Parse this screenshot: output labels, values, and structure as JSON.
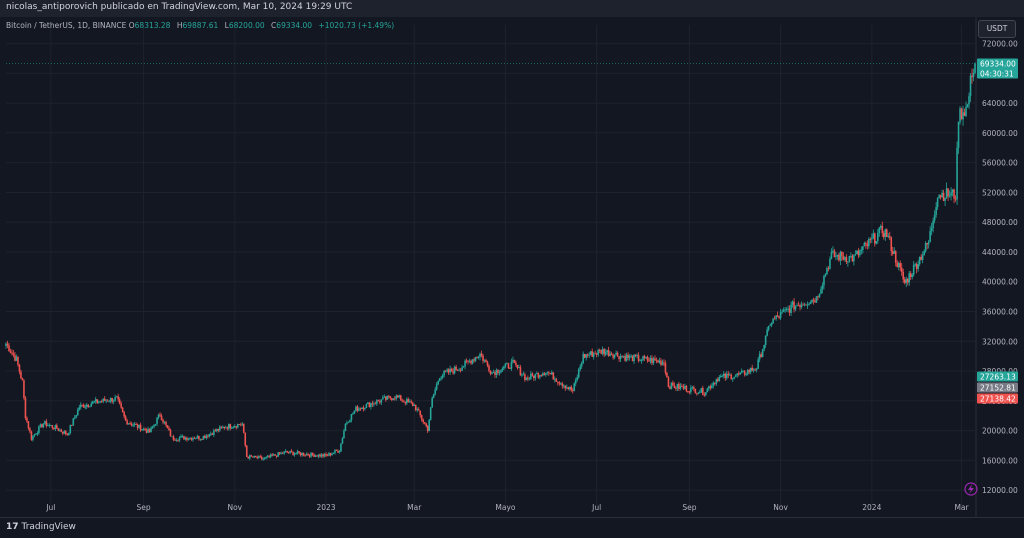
{
  "header": {
    "published_by": "nicolas_antiporovich publicado en TradingView.com, Mar 10, 2024 19:29 UTC"
  },
  "symbol": {
    "name": "Bitcoin / TetherUS, 1D, BINANCE",
    "open_label": "O",
    "open": "68313.28",
    "high_label": "H",
    "high": "69887.61",
    "low_label": "L",
    "low": "68200.00",
    "close_label": "C",
    "close": "69334.00",
    "change": "+1020.73 (+1.49%)"
  },
  "currency_button": "USDT",
  "footer": {
    "brand": "TradingView",
    "logo_glyph": "17"
  },
  "colors": {
    "up": "#26a69a",
    "down": "#ef5350",
    "background": "#131722",
    "grid": "#1e222d",
    "text": "#b2b5be"
  },
  "price_tags": [
    {
      "label": "69334.00",
      "sub": "04:30:31",
      "value": 69334,
      "color": "#26a69a"
    },
    {
      "label": "27263.13",
      "value": 27263.13,
      "color": "#26a69a"
    },
    {
      "label": "27152.81",
      "value": 27152.81,
      "color": "#787b86"
    },
    {
      "label": "27138.42",
      "value": 27138.42,
      "color": "#ef5350"
    }
  ],
  "chart_data": {
    "type": "candlestick",
    "y_ticks": [
      "12000.00",
      "16000.00",
      "20000.00",
      "24000.00",
      "28000.00",
      "32000.00",
      "36000.00",
      "40000.00",
      "44000.00",
      "48000.00",
      "52000.00",
      "56000.00",
      "60000.00",
      "64000.00",
      "68000.00",
      "72000.00"
    ],
    "y_tick_values": [
      12000,
      16000,
      20000,
      24000,
      28000,
      32000,
      36000,
      40000,
      44000,
      48000,
      52000,
      56000,
      60000,
      64000,
      68000,
      72000
    ],
    "ylim": [
      10000,
      74500
    ],
    "x_ticks": [
      "Jul",
      "Sep",
      "Nov",
      "2023",
      "Mar",
      "Mayo",
      "Jul",
      "Sep",
      "Nov",
      "2024",
      "Mar"
    ],
    "x_tick_dates": [
      "2022-07-01",
      "2022-09-01",
      "2022-11-01",
      "2023-01-01",
      "2023-03-01",
      "2023-05-01",
      "2023-07-01",
      "2023-09-01",
      "2023-11-01",
      "2024-01-01",
      "2024-03-01"
    ],
    "xlim": [
      "2022-06-01",
      "2024-03-10"
    ],
    "series_anchors": [
      [
        "2022-06-01",
        31700
      ],
      [
        "2022-06-08",
        29500
      ],
      [
        "2022-06-12",
        26500
      ],
      [
        "2022-06-14",
        22000
      ],
      [
        "2022-06-18",
        19000
      ],
      [
        "2022-06-26",
        21000
      ],
      [
        "2022-07-05",
        20300
      ],
      [
        "2022-07-12",
        19500
      ],
      [
        "2022-07-20",
        23200
      ],
      [
        "2022-07-30",
        23800
      ],
      [
        "2022-08-14",
        24300
      ],
      [
        "2022-08-20",
        21300
      ],
      [
        "2022-09-05",
        19800
      ],
      [
        "2022-09-12",
        22200
      ],
      [
        "2022-09-20",
        19000
      ],
      [
        "2022-10-10",
        19100
      ],
      [
        "2022-10-25",
        20500
      ],
      [
        "2022-11-06",
        20900
      ],
      [
        "2022-11-09",
        16500
      ],
      [
        "2022-11-20",
        16200
      ],
      [
        "2022-12-05",
        17100
      ],
      [
        "2022-12-20",
        16800
      ],
      [
        "2023-01-01",
        16600
      ],
      [
        "2023-01-10",
        17400
      ],
      [
        "2023-01-14",
        20900
      ],
      [
        "2023-01-21",
        22900
      ],
      [
        "2023-02-01",
        23700
      ],
      [
        "2023-02-16",
        24600
      ],
      [
        "2023-03-01",
        23400
      ],
      [
        "2023-03-10",
        20200
      ],
      [
        "2023-03-13",
        24200
      ],
      [
        "2023-03-18",
        27400
      ],
      [
        "2023-04-01",
        28500
      ],
      [
        "2023-04-14",
        30300
      ],
      [
        "2023-04-22",
        27800
      ],
      [
        "2023-05-06",
        29000
      ],
      [
        "2023-05-15",
        27000
      ],
      [
        "2023-05-28",
        28000
      ],
      [
        "2023-06-15",
        25300
      ],
      [
        "2023-06-22",
        30000
      ],
      [
        "2023-07-05",
        30700
      ],
      [
        "2023-07-20",
        29900
      ],
      [
        "2023-08-15",
        29200
      ],
      [
        "2023-08-18",
        26100
      ],
      [
        "2023-09-11",
        25200
      ],
      [
        "2023-09-20",
        27100
      ],
      [
        "2023-10-05",
        27500
      ],
      [
        "2023-10-16",
        28500
      ],
      [
        "2023-10-23",
        33000
      ],
      [
        "2023-10-25",
        34500
      ],
      [
        "2023-11-09",
        36700
      ],
      [
        "2023-11-25",
        37800
      ],
      [
        "2023-12-05",
        43500
      ],
      [
        "2023-12-20",
        43200
      ],
      [
        "2024-01-08",
        46900
      ],
      [
        "2024-01-11",
        46400
      ],
      [
        "2024-01-23",
        39800
      ],
      [
        "2024-02-01",
        42800
      ],
      [
        "2024-02-08",
        45300
      ],
      [
        "2024-02-14",
        51800
      ],
      [
        "2024-02-26",
        51700
      ],
      [
        "2024-02-28",
        62400
      ],
      [
        "2024-03-05",
        63500
      ],
      [
        "2024-03-08",
        68300
      ],
      [
        "2024-03-10",
        69334
      ]
    ]
  }
}
